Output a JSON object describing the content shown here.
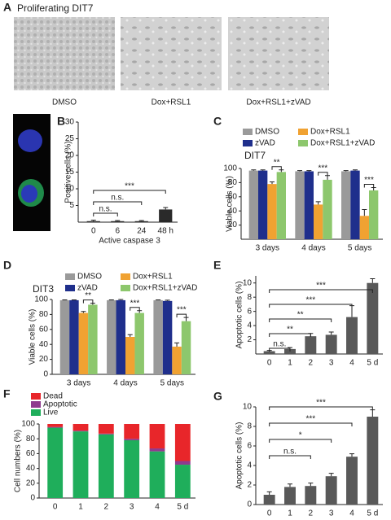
{
  "panel_a": {
    "letter": "A",
    "title": "Proliferating DIT7",
    "images": [
      "DMSO",
      "Dox+RSL1",
      "Dox+RSL1+zVAD"
    ]
  },
  "chart_data": [
    {
      "type": "bar",
      "panel": "B",
      "xlabel": "Active caspase 3",
      "ylabel": "Positive cells (%)",
      "categories": [
        "0",
        "6",
        "24",
        "48 h"
      ],
      "values": [
        0.3,
        0.3,
        0.3,
        3.8
      ],
      "errors": [
        0.3,
        0.2,
        0.2,
        0.6
      ],
      "color": "#2a2a2a",
      "ylim": [
        0,
        30
      ],
      "yticks": [
        5,
        10,
        15,
        20,
        25,
        30
      ],
      "annotations": [
        {
          "label": "n.s.",
          "from": 0,
          "to": 1
        },
        {
          "label": "n.s.",
          "from": 0,
          "to": 2
        },
        {
          "label": "***",
          "from": 0,
          "to": 3
        }
      ]
    },
    {
      "type": "grouped_bar",
      "panel": "C",
      "title": "DIT7",
      "ylabel": "Viable cells (%)",
      "categories": [
        "3 days",
        "4 days",
        "5 days"
      ],
      "series": [
        {
          "name": "DMSO",
          "color": "#9a9a9a",
          "values": [
            97,
            96,
            96
          ],
          "errors": [
            1,
            1,
            1
          ]
        },
        {
          "name": "zVAD",
          "color": "#1f2f8c",
          "values": [
            97,
            96,
            97
          ],
          "errors": [
            1,
            1,
            1
          ]
        },
        {
          "name": "Dox+RSL1",
          "color": "#f0a232",
          "values": [
            78,
            49,
            33
          ],
          "errors": [
            3,
            4,
            9
          ]
        },
        {
          "name": "Dox+RSL1+zVAD",
          "color": "#8dc76d",
          "values": [
            95,
            84,
            69
          ],
          "errors": [
            3,
            6,
            4
          ]
        }
      ],
      "ylim": [
        0,
        100
      ],
      "yticks": [
        20,
        40,
        60,
        80,
        100
      ],
      "annotations": [
        {
          "label": "**",
          "category": 0
        },
        {
          "label": "***",
          "category": 1
        },
        {
          "label": "***",
          "category": 2
        }
      ]
    },
    {
      "type": "grouped_bar",
      "panel": "D",
      "title": "DIT3",
      "ylabel": "Viable cells (%)",
      "categories": [
        "3 days",
        "4 days",
        "5 days"
      ],
      "series": [
        {
          "name": "DMSO",
          "color": "#9a9a9a",
          "values": [
            99,
            99,
            99
          ],
          "errors": [
            0.5,
            0.5,
            0.5
          ]
        },
        {
          "name": "zVAD",
          "color": "#1f2f8c",
          "values": [
            99,
            99,
            98
          ],
          "errors": [
            0.5,
            1,
            1
          ]
        },
        {
          "name": "Dox+RSL1",
          "color": "#f0a232",
          "values": [
            82,
            50,
            37
          ],
          "errors": [
            2,
            3,
            5
          ]
        },
        {
          "name": "Dox+RSL1+zVAD",
          "color": "#8dc76d",
          "values": [
            93,
            82,
            71
          ],
          "errors": [
            2,
            3,
            5
          ]
        }
      ],
      "ylim": [
        0,
        100
      ],
      "yticks": [
        0,
        20,
        40,
        60,
        80,
        100
      ],
      "annotations": [
        {
          "label": "**",
          "category": 0
        },
        {
          "label": "***",
          "category": 1
        },
        {
          "label": "***",
          "category": 2
        }
      ]
    },
    {
      "type": "bar",
      "panel": "E",
      "ylabel": "Apoptotic cells (%)",
      "categories": [
        "0",
        "1",
        "2",
        "3",
        "4",
        "5 d"
      ],
      "values": [
        0.4,
        0.7,
        2.5,
        2.7,
        5.2,
        10.0
      ],
      "errors": [
        0.1,
        0.2,
        0.4,
        0.4,
        1.6,
        0.6
      ],
      "color": "#595959",
      "ylim": [
        0,
        11
      ],
      "yticks": [
        2,
        4,
        6,
        8,
        10
      ],
      "annotations": [
        {
          "label": "n.s.",
          "from": 0,
          "to": 1
        },
        {
          "label": "**",
          "from": 0,
          "to": 2
        },
        {
          "label": "**",
          "from": 0,
          "to": 3
        },
        {
          "label": "***",
          "from": 0,
          "to": 4
        },
        {
          "label": "***",
          "from": 0,
          "to": 5
        }
      ]
    },
    {
      "type": "stacked_bar",
      "panel": "F",
      "ylabel": "Cell numbers (%)",
      "categories": [
        "0",
        "1",
        "2",
        "3",
        "4",
        "5 d"
      ],
      "series": [
        {
          "name": "Dead",
          "color": "#e8262a",
          "values": [
            4,
            9,
            13,
            20,
            33,
            50
          ]
        },
        {
          "name": "Apoptotic",
          "color": "#8e3a8e",
          "values": [
            1,
            1,
            1,
            2,
            4,
            5
          ]
        },
        {
          "name": "Live",
          "color": "#1fae5b",
          "values": [
            95,
            90,
            86,
            78,
            63,
            45
          ]
        }
      ],
      "ylim": [
        0,
        100
      ],
      "yticks": [
        0,
        20,
        40,
        60,
        80,
        100
      ]
    },
    {
      "type": "bar",
      "panel": "G",
      "ylabel": "Apoptotic cells (%)",
      "categories": [
        "0",
        "1",
        "2",
        "3",
        "4",
        "5 d"
      ],
      "values": [
        1.0,
        1.8,
        1.9,
        2.9,
        4.9,
        9.0
      ],
      "errors": [
        0.3,
        0.3,
        0.3,
        0.3,
        0.3,
        0.7
      ],
      "color": "#595959",
      "ylim": [
        0,
        10
      ],
      "yticks": [
        0,
        2,
        4,
        6,
        8,
        10
      ],
      "annotations": [
        {
          "label": "n.s.",
          "from": 0,
          "to": 2
        },
        {
          "label": "*",
          "from": 0,
          "to": 3
        },
        {
          "label": "***",
          "from": 0,
          "to": 4
        },
        {
          "label": "***",
          "from": 0,
          "to": 5
        }
      ]
    }
  ]
}
